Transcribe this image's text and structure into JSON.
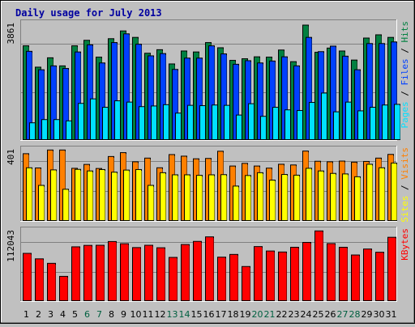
{
  "chart_data": [
    {
      "type": "bar",
      "title": "Daily usage for July 2013",
      "categories": [
        "1",
        "2",
        "3",
        "4",
        "5",
        "6",
        "7",
        "8",
        "9",
        "10",
        "11",
        "12",
        "13",
        "14",
        "15",
        "16",
        "17",
        "18",
        "19",
        "20",
        "21",
        "22",
        "23",
        "24",
        "25",
        "26",
        "27",
        "28",
        "29",
        "30",
        "31"
      ],
      "weekend_days": [
        "6",
        "7",
        "13",
        "14",
        "20",
        "21",
        "27",
        "28"
      ],
      "ymax_label": "3861",
      "ylabel": [
        "Pages",
        "Files",
        "Hits"
      ],
      "series": [
        {
          "name": "Hits",
          "color": "#008040",
          "values": [
            2900,
            2240,
            2530,
            2280,
            2900,
            3070,
            2550,
            3120,
            3360,
            3160,
            2670,
            2780,
            2340,
            2740,
            2710,
            3000,
            2840,
            2450,
            2500,
            2560,
            2550,
            2770,
            2410,
            3540,
            2700,
            2830,
            2740,
            2460,
            3140,
            3240,
            3160
          ]
        },
        {
          "name": "Files",
          "color": "#0040ff",
          "values": [
            2730,
            2160,
            2280,
            2200,
            2710,
            2930,
            2370,
            3000,
            3270,
            2950,
            2590,
            2660,
            2170,
            2520,
            2520,
            2900,
            2650,
            2330,
            2440,
            2370,
            2430,
            2560,
            2280,
            3160,
            2720,
            2890,
            2580,
            2160,
            2970,
            2970,
            3020
          ]
        },
        {
          "name": "Pages",
          "color": "#00e0ff",
          "values": [
            520,
            620,
            620,
            580,
            1120,
            1260,
            1000,
            1200,
            1160,
            1020,
            1040,
            1080,
            820,
            1060,
            1050,
            1070,
            1060,
            760,
            1110,
            720,
            1000,
            920,
            900,
            1150,
            1440,
            860,
            1160,
            890,
            1000,
            1070,
            1090
          ]
        }
      ]
    },
    {
      "type": "bar",
      "ymax_label": "401",
      "ylabel": [
        "Sites",
        "Visits"
      ],
      "series": [
        {
          "name": "Visits",
          "color": "#ff8000",
          "values": [
            380,
            299,
            401,
            401,
            297,
            319,
            296,
            364,
            386,
            334,
            355,
            300,
            375,
            366,
            351,
            353,
            394,
            310,
            325,
            310,
            298,
            320,
            316,
            395,
            337,
            334,
            338,
            332,
            336,
            355,
            376
          ]
        },
        {
          "name": "Sites",
          "color": "#ffff00",
          "values": [
            300,
            200,
            288,
            178,
            291,
            282,
            290,
            275,
            287,
            290,
            200,
            272,
            260,
            260,
            257,
            260,
            261,
            196,
            256,
            272,
            230,
            262,
            258,
            297,
            282,
            268,
            265,
            249,
            320,
            300,
            327
          ]
        }
      ]
    },
    {
      "type": "bar",
      "ymax_label": "112043",
      "ylabel": [
        "KBytes"
      ],
      "series": [
        {
          "name": "KBytes",
          "color": "#ff0000",
          "values": [
            76000,
            67200,
            60000,
            39100,
            86500,
            88800,
            89000,
            95000,
            91500,
            85300,
            89000,
            85000,
            69500,
            90200,
            95200,
            102500,
            69900,
            74300,
            54900,
            86900,
            79800,
            78200,
            85800,
            93600,
            112043,
            91700,
            85800,
            73400,
            83000,
            77800,
            101800
          ]
        }
      ]
    }
  ]
}
